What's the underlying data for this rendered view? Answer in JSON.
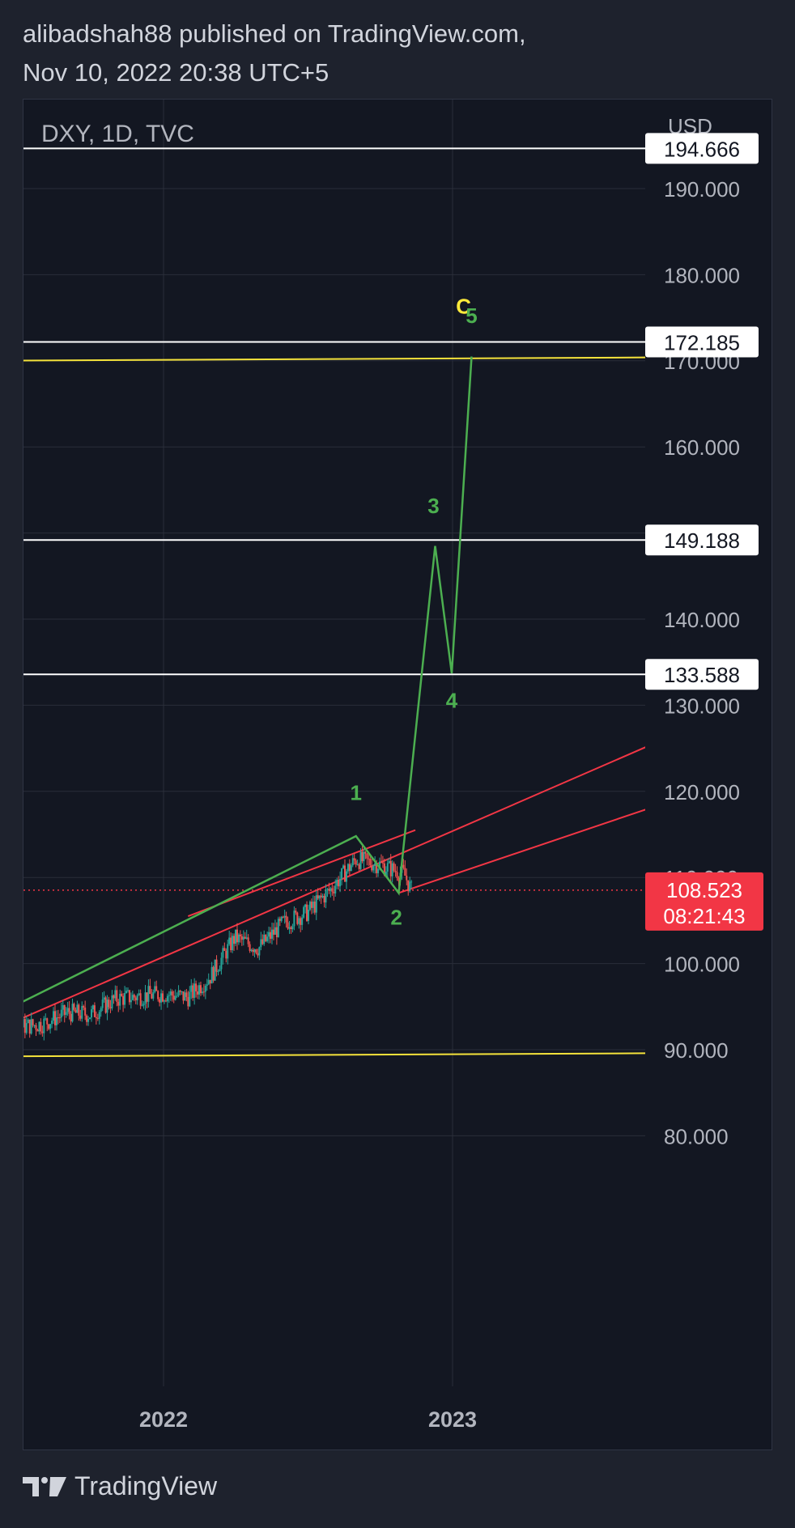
{
  "header": {
    "line1": "alibadshah88 published on TradingView.com,",
    "line2": "Nov 10, 2022 20:38 UTC+5"
  },
  "footer": {
    "brand": "TradingView"
  },
  "colors": {
    "background": "#131722",
    "page": "#1e222d",
    "grid": "#2a2e39",
    "text": "#d1d4dc",
    "axis_text": "#b2b5be",
    "up_candle": "#26a69a",
    "down_candle": "#ef5350",
    "channel": "#f23645",
    "wave": "#4caf50",
    "wave_label": "#4caf50",
    "c_label": "#ffeb3b",
    "support_resistance_yellow": "#f5e33b",
    "level_line": "#ffffff",
    "price_tag": "#f23645"
  },
  "chart_data": {
    "type": "line",
    "symbol": "DXY, 1D, TVC",
    "currency": "USD",
    "y_axis": {
      "ticks": [
        80,
        90,
        100,
        110,
        120,
        130,
        140,
        150,
        160,
        170,
        180,
        190
      ],
      "tick_labels": [
        "80.000",
        "90.000",
        "100.000",
        "110.000",
        "120.000",
        "130.000",
        "140.000",
        "150.000",
        "160.000",
        "170.000",
        "180.000",
        "190.000"
      ],
      "ylim": [
        80,
        200
      ]
    },
    "x_axis": {
      "ticks": [
        "2022-01-01",
        "2023-01-01"
      ],
      "tick_labels": [
        "2022",
        "2023"
      ],
      "xlim": [
        "2021-05-01",
        "2023-10-01"
      ]
    },
    "grid": true,
    "current_price": {
      "value": 108.523,
      "label": "108.523",
      "countdown": "08:21:43"
    },
    "horizontal_levels": [
      {
        "value": 194.666,
        "label": "194.666",
        "color": "#ffffff"
      },
      {
        "value": 172.185,
        "label": "172.185",
        "color": "#ffffff"
      },
      {
        "value": 149.188,
        "label": "149.188",
        "color": "#ffffff"
      },
      {
        "value": 133.588,
        "label": "133.588",
        "color": "#ffffff"
      }
    ],
    "yellow_lines": [
      {
        "from": {
          "x": "2021-05-01",
          "y": 170.0
        },
        "to": {
          "x": "2023-10-01",
          "y": 170.4
        }
      },
      {
        "from": {
          "x": "2021-05-01",
          "y": 89.2
        },
        "to": {
          "x": "2023-10-01",
          "y": 89.6
        }
      }
    ],
    "channel_lines": [
      {
        "from": {
          "x": "2021-05-01",
          "y": 91.0
        },
        "to": {
          "x": "2023-10-01",
          "y": 126.3
        }
      },
      {
        "from": {
          "x": "2022-02-01",
          "y": 105.5
        },
        "to": {
          "x": "2022-11-15",
          "y": 115.5
        }
      },
      {
        "from": {
          "x": "2022-10-25",
          "y": 108.2
        },
        "to": {
          "x": "2023-09-15",
          "y": 118.3
        }
      }
    ],
    "wave_path": [
      {
        "x": "2021-05-01",
        "y": 92.5
      },
      {
        "x": "2022-09-01",
        "y": 114.8
      },
      {
        "x": "2022-10-25",
        "y": 108.2
      },
      {
        "x": "2022-12-10",
        "y": 148.5
      },
      {
        "x": "2022-12-31",
        "y": 133.7
      },
      {
        "x": "2023-01-25",
        "y": 170.5
      }
    ],
    "wave_labels": [
      {
        "text": "1",
        "x": "2022-09-01",
        "y": 119.0,
        "color": "#4caf50"
      },
      {
        "text": "2",
        "x": "2022-10-22",
        "y": 104.5,
        "color": "#4caf50"
      },
      {
        "text": "3",
        "x": "2022-12-08",
        "y": 152.3,
        "color": "#4caf50"
      },
      {
        "text": "4",
        "x": "2022-12-31",
        "y": 129.7,
        "color": "#4caf50"
      },
      {
        "text": "C",
        "x": "2023-01-15",
        "y": 175.5,
        "color": "#ffeb3b"
      },
      {
        "text": "5",
        "x": "2023-01-25",
        "y": 174.4,
        "color": "#4caf50"
      }
    ],
    "price_series": {
      "dates": [
        "2021-05-01",
        "2021-06-01",
        "2021-07-01",
        "2021-08-01",
        "2021-09-01",
        "2021-10-01",
        "2021-11-01",
        "2021-12-01",
        "2022-01-01",
        "2022-02-01",
        "2022-03-01",
        "2022-04-01",
        "2022-05-01",
        "2022-06-01",
        "2022-07-01",
        "2022-08-01",
        "2022-09-01",
        "2022-10-01",
        "2022-11-01",
        "2022-11-10"
      ],
      "close": [
        91.0,
        91.9,
        92.6,
        93.0,
        94.3,
        94.1,
        95.9,
        96.2,
        96.5,
        96.1,
        98.5,
        103.0,
        101.8,
        104.7,
        105.9,
        108.7,
        112.1,
        111.5,
        110.4,
        108.5
      ]
    }
  }
}
